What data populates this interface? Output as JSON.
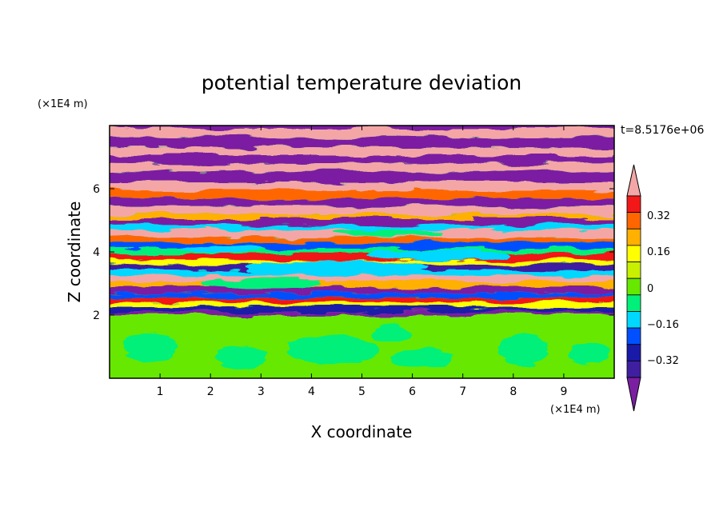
{
  "chart_data": {
    "type": "heatmap",
    "title": "potential temperature deviation",
    "xlabel": "X coordinate",
    "ylabel": "Z coordinate",
    "x_unit": "(×1E4 m)",
    "y_unit": "(×1E4 m)",
    "time_label": "t=8.5176e+06",
    "x_ticks": [
      "1",
      "2",
      "3",
      "4",
      "5",
      "6",
      "7",
      "8",
      "9"
    ],
    "y_ticks": [
      "2",
      "4",
      "6"
    ],
    "xlim": [
      0,
      10
    ],
    "ylim": [
      0,
      8
    ],
    "colorbar": {
      "levels": [
        -0.48,
        -0.4,
        -0.32,
        -0.24,
        -0.16,
        -0.08,
        0,
        0.08,
        0.16,
        0.24,
        0.32,
        0.4,
        0.48
      ],
      "labels": [
        "0.32",
        "0.16",
        "0",
        "−0.16",
        "−0.32"
      ],
      "colors": [
        "#7b1fa2",
        "#3f1fa0",
        "#1a1aa8",
        "#0050ff",
        "#00d8ff",
        "#00f07a",
        "#66e800",
        "#c8f000",
        "#ffff00",
        "#ffb000",
        "#ff6600",
        "#f21818",
        "#f4a6a6"
      ]
    },
    "description_of_field": {
      "lower_layer": "z 0–2: values near 0 (green / yellow-green)",
      "upper_layers": "z 2–8: horizontally stratified bands alternating between purple (≤ −0.48) and pink (≥ 0.48) with multicolor turbulent transitions"
    }
  }
}
